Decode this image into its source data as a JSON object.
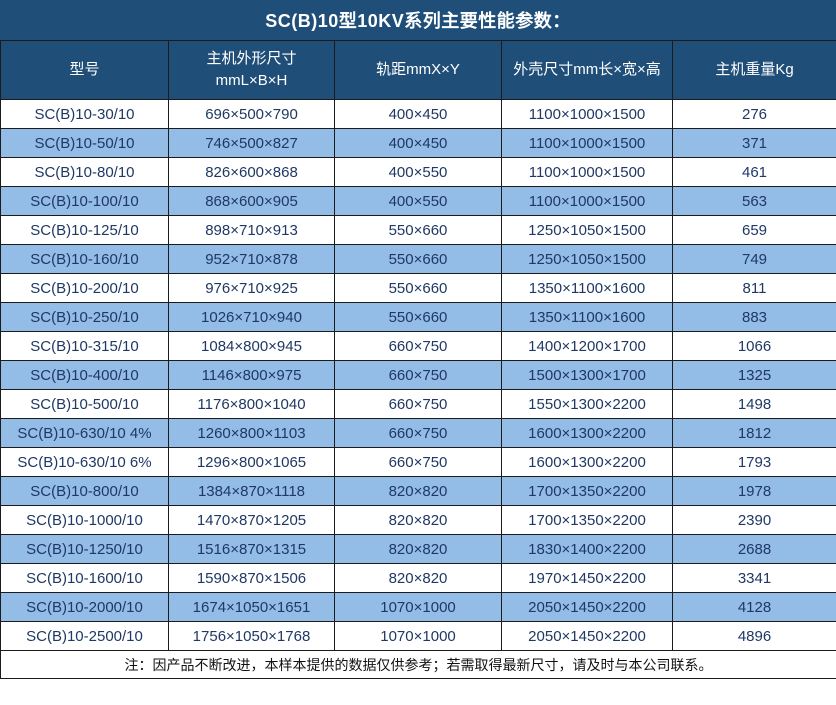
{
  "title": "SC(B)10型10KV系列主要性能参数：",
  "colors": {
    "header_bg": "#1F4E79",
    "row_alt_bg": "#93BCE6",
    "row_bg": "#FFFFFF",
    "grid_border": "#1B1B1B",
    "cell_text": "#1F3864",
    "header_text": "#FFFFFF",
    "note_text": "#111111"
  },
  "header": {
    "col1": "型号",
    "col2_line1": "主机外形尺寸",
    "col2_line2": "mmL×B×H",
    "col3": "轨距mmX×Y",
    "col4": "外壳尺寸mm长×宽×高",
    "col5": "主机重量Kg"
  },
  "footer": {
    "note": "注：因产品不断改进，本样本提供的数据仅供参考；若需取得最新尺寸，请及时与本公司联系。"
  },
  "chart_data": {
    "type": "table",
    "title": "SC(B)10型10KV系列主要性能参数：",
    "columns": [
      "型号",
      "主机外形尺寸 mmL×B×H",
      "轨距mmX×Y",
      "外壳尺寸mm长×宽×高",
      "主机重量Kg"
    ],
    "rows": [
      [
        "SC(B)10-30/10",
        "696×500×790",
        "400×450",
        "1100×1000×1500",
        "276"
      ],
      [
        "SC(B)10-50/10",
        "746×500×827",
        "400×450",
        "1100×1000×1500",
        "371"
      ],
      [
        "SC(B)10-80/10",
        "826×600×868",
        "400×550",
        "1100×1000×1500",
        "461"
      ],
      [
        "SC(B)10-100/10",
        "868×600×905",
        "400×550",
        "1100×1000×1500",
        "563"
      ],
      [
        "SC(B)10-125/10",
        "898×710×913",
        "550×660",
        "1250×1050×1500",
        "659"
      ],
      [
        "SC(B)10-160/10",
        "952×710×878",
        "550×660",
        "1250×1050×1500",
        "749"
      ],
      [
        "SC(B)10-200/10",
        "976×710×925",
        "550×660",
        "1350×1100×1600",
        "811"
      ],
      [
        "SC(B)10-250/10",
        "1026×710×940",
        "550×660",
        "1350×1100×1600",
        "883"
      ],
      [
        "SC(B)10-315/10",
        "1084×800×945",
        "660×750",
        "1400×1200×1700",
        "1066"
      ],
      [
        "SC(B)10-400/10",
        "1146×800×975",
        "660×750",
        "1500×1300×1700",
        "1325"
      ],
      [
        "SC(B)10-500/10",
        "1176×800×1040",
        "660×750",
        "1550×1300×2200",
        "1498"
      ],
      [
        "SC(B)10-630/10 4%",
        "1260×800×1103",
        "660×750",
        "1600×1300×2200",
        "1812"
      ],
      [
        "SC(B)10-630/10 6%",
        "1296×800×1065",
        "660×750",
        "1600×1300×2200",
        "1793"
      ],
      [
        "SC(B)10-800/10",
        "1384×870×1118",
        "820×820",
        "1700×1350×2200",
        "1978"
      ],
      [
        "SC(B)10-1000/10",
        "1470×870×1205",
        "820×820",
        "1700×1350×2200",
        "2390"
      ],
      [
        "SC(B)10-1250/10",
        "1516×870×1315",
        "820×820",
        "1830×1400×2200",
        "2688"
      ],
      [
        "SC(B)10-1600/10",
        "1590×870×1506",
        "820×820",
        "1970×1450×2200",
        "3341"
      ],
      [
        "SC(B)10-2000/10",
        "1674×1050×1651",
        "1070×1000",
        "2050×1450×2200",
        "4128"
      ],
      [
        "SC(B)10-2500/10",
        "1756×1050×1768",
        "1070×1000",
        "2050×1450×2200",
        "4896"
      ]
    ]
  }
}
